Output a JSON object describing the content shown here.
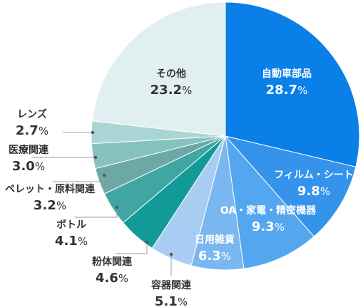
{
  "chart_data": {
    "type": "pie",
    "title": "",
    "slices": [
      {
        "label": "自動車部品",
        "value": 28.7,
        "value_text": "28.7",
        "unit": "%",
        "color": "#0a7fe8",
        "text_color": "#ffffff"
      },
      {
        "label": "フィルム・シート",
        "value": 9.8,
        "value_text": "9.8",
        "unit": "%",
        "color": "#3593ec",
        "text_color": "#ffffff"
      },
      {
        "label": "OA・家電・精密機器",
        "value": 9.3,
        "value_text": "9.3",
        "unit": "%",
        "color": "#54a6ef",
        "text_color": "#ffffff"
      },
      {
        "label": "日用雑貨",
        "value": 6.3,
        "value_text": "6.3",
        "unit": "%",
        "color": "#7ab7f0",
        "text_color": "#ffffff"
      },
      {
        "label": "容器関連",
        "value": 5.1,
        "value_text": "5.1",
        "unit": "%",
        "color": "#a9cdf2",
        "text_color": "#333333"
      },
      {
        "label": "粉体関連",
        "value": 4.6,
        "value_text": "4.6",
        "unit": "%",
        "color": "#119a98",
        "text_color": "#333333"
      },
      {
        "label": "ボトル",
        "value": 4.1,
        "value_text": "4.1",
        "unit": "%",
        "color": "#3fa6a4",
        "text_color": "#333333"
      },
      {
        "label": "ペレット・原料関連",
        "value": 3.2,
        "value_text": "3.2",
        "unit": "%",
        "color": "#6ea8a6",
        "text_color": "#333333"
      },
      {
        "label": "医療関連",
        "value": 3.0,
        "value_text": "3.0",
        "unit": "%",
        "color": "#86c2c0",
        "text_color": "#333333"
      },
      {
        "label": "レンズ",
        "value": 2.7,
        "value_text": "2.7",
        "unit": "%",
        "color": "#a9d6d4",
        "text_color": "#333333"
      },
      {
        "label": "その他",
        "value": 23.2,
        "value_text": "23.2",
        "unit": "%",
        "color": "#e1eff0",
        "text_color": "#333333"
      }
    ],
    "start": "12 o'clock",
    "direction": "clockwise",
    "legend": "none",
    "leader_line_color": "#999999"
  }
}
